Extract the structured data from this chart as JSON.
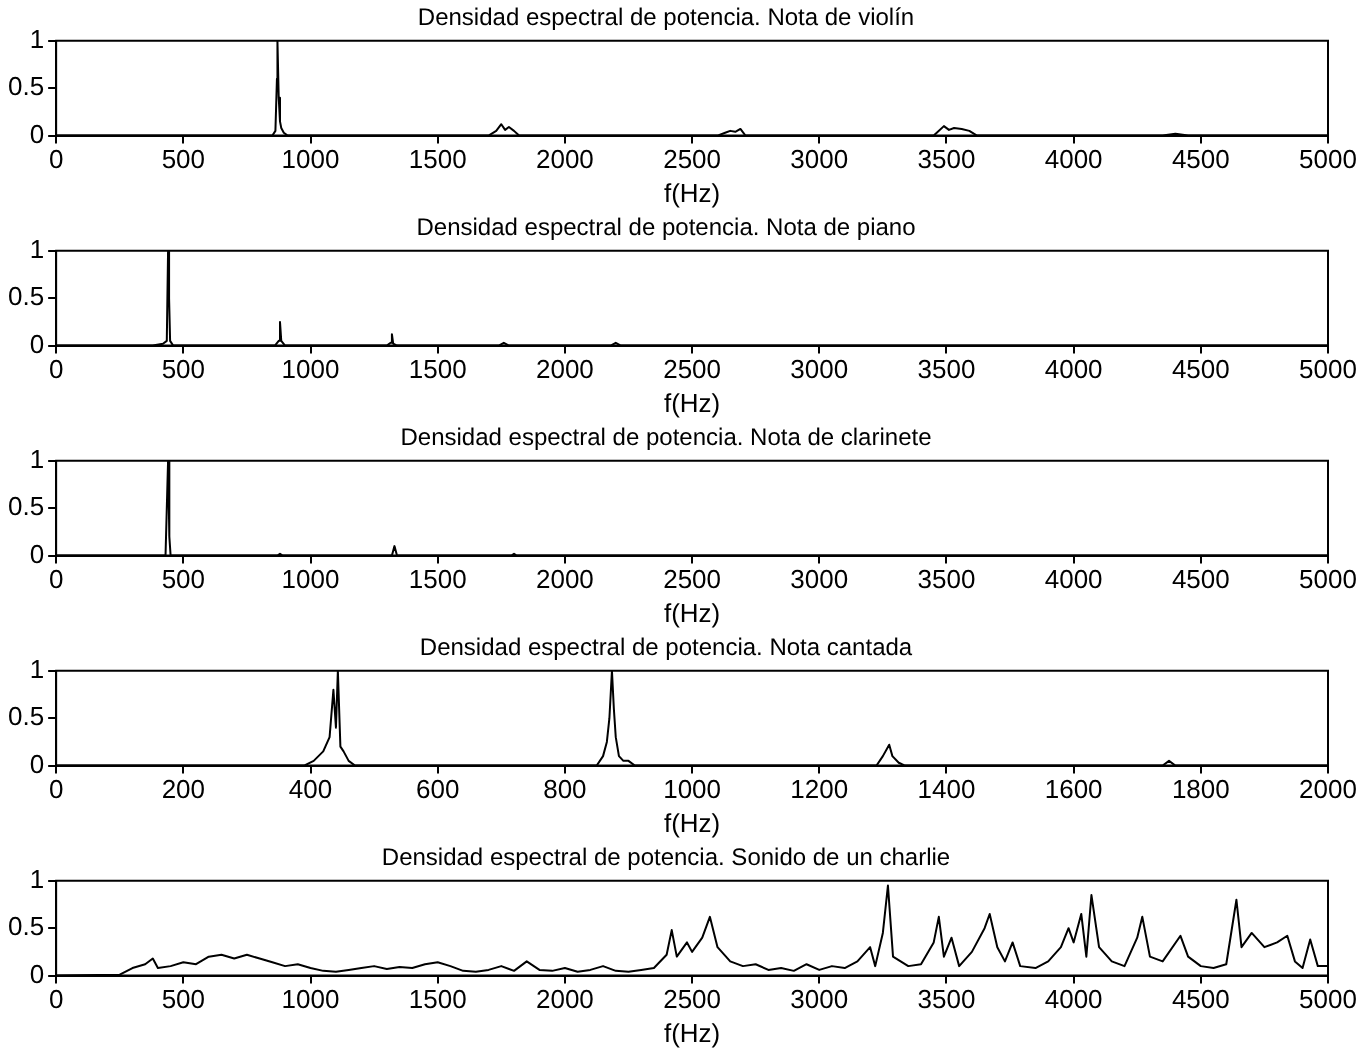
{
  "chart_data": [
    {
      "type": "line",
      "title": "Densidad espectral de potencia. Nota de violín",
      "xlabel": "f(Hz)",
      "color": "#000000",
      "marker": "none",
      "xlim": [
        0,
        5000
      ],
      "xticks": [
        0,
        500,
        1000,
        1500,
        2000,
        2500,
        3000,
        3500,
        4000,
        4500,
        5000
      ],
      "ylim": [
        0,
        1
      ],
      "yticks": [
        0,
        0.5,
        1
      ],
      "x": [
        0,
        850,
        862,
        868,
        870,
        875,
        880,
        885,
        895,
        910,
        1700,
        1730,
        1750,
        1765,
        1780,
        1800,
        1820,
        2600,
        2630,
        2650,
        2670,
        2690,
        2710,
        3450,
        3490,
        3510,
        3530,
        3560,
        3590,
        3620,
        4350,
        4400,
        4450,
        5000
      ],
      "values": [
        0,
        0,
        0.05,
        0.6,
        1,
        0.4,
        0.15,
        0.08,
        0.03,
        0,
        0,
        0.05,
        0.12,
        0.06,
        0.09,
        0.05,
        0,
        0,
        0.03,
        0.05,
        0.04,
        0.07,
        0,
        0,
        0.1,
        0.06,
        0.08,
        0.07,
        0.05,
        0,
        0,
        0.02,
        0,
        0
      ]
    },
    {
      "type": "line",
      "title": "Densidad espectral de potencia. Nota de piano",
      "xlabel": "f(Hz)",
      "color": "#000000",
      "marker": "none",
      "xlim": [
        0,
        5000
      ],
      "xticks": [
        0,
        500,
        1000,
        1500,
        2000,
        2500,
        3000,
        3500,
        4000,
        4500,
        5000
      ],
      "ylim": [
        0,
        1
      ],
      "yticks": [
        0,
        0.5,
        1
      ],
      "x": [
        0,
        380,
        420,
        435,
        440,
        444,
        448,
        460,
        860,
        875,
        880,
        885,
        900,
        1300,
        1315,
        1320,
        1325,
        1340,
        1740,
        1760,
        1780,
        2180,
        2200,
        2220,
        5000
      ],
      "values": [
        0,
        0,
        0.02,
        0.05,
        1,
        0.5,
        0.05,
        0,
        0,
        0.05,
        0.25,
        0.05,
        0,
        0,
        0.03,
        0.12,
        0.02,
        0,
        0,
        0.03,
        0,
        0,
        0.03,
        0,
        0
      ]
    },
    {
      "type": "line",
      "title": "Densidad espectral de potencia. Nota de clarinete",
      "xlabel": "f(Hz)",
      "color": "#000000",
      "marker": "none",
      "xlim": [
        0,
        5000
      ],
      "xticks": [
        0,
        500,
        1000,
        1500,
        2000,
        2500,
        3000,
        3500,
        4000,
        4500,
        5000
      ],
      "ylim": [
        0,
        1
      ],
      "yticks": [
        0,
        0.5,
        1
      ],
      "x": [
        0,
        430,
        440,
        445,
        450,
        870,
        880,
        890,
        1320,
        1330,
        1340,
        1790,
        1800,
        1810,
        5000
      ],
      "values": [
        0,
        0,
        1,
        0.2,
        0,
        0,
        0.02,
        0,
        0,
        0.1,
        0,
        0,
        0.02,
        0,
        0
      ]
    },
    {
      "type": "line",
      "title": "Densidad espectral de potencia. Nota cantada",
      "xlabel": "f(Hz)",
      "color": "#000000",
      "marker": "none",
      "xlim": [
        0,
        2000
      ],
      "xticks": [
        0,
        200,
        400,
        600,
        800,
        1000,
        1200,
        1400,
        1600,
        1800,
        2000
      ],
      "ylim": [
        0,
        1
      ],
      "yticks": [
        0,
        0.5,
        1
      ],
      "x": [
        0,
        390,
        405,
        420,
        430,
        436,
        440,
        443,
        447,
        452,
        460,
        470,
        850,
        860,
        866,
        870,
        874,
        877,
        880,
        885,
        892,
        900,
        910,
        1290,
        1300,
        1310,
        1315,
        1325,
        1335,
        1740,
        1750,
        1760,
        2000
      ],
      "values": [
        0,
        0,
        0.05,
        0.15,
        0.3,
        0.8,
        0.4,
        1,
        0.2,
        0.15,
        0.05,
        0,
        0,
        0.1,
        0.25,
        0.5,
        1,
        0.6,
        0.3,
        0.1,
        0.05,
        0.05,
        0,
        0,
        0.1,
        0.22,
        0.1,
        0.03,
        0,
        0,
        0.05,
        0,
        0
      ]
    },
    {
      "type": "line",
      "title": "Densidad espectral de potencia. Sonido de un charlie",
      "xlabel": "f(Hz)",
      "color": "#000000",
      "marker": "none",
      "xlim": [
        0,
        5000
      ],
      "xticks": [
        0,
        500,
        1000,
        1500,
        2000,
        2500,
        3000,
        3500,
        4000,
        4500,
        5000
      ],
      "ylim": [
        0,
        1
      ],
      "yticks": [
        0,
        0.5,
        1
      ],
      "x": [
        0,
        250,
        300,
        350,
        380,
        400,
        450,
        500,
        550,
        600,
        650,
        700,
        750,
        800,
        850,
        900,
        950,
        1000,
        1050,
        1100,
        1150,
        1200,
        1250,
        1300,
        1350,
        1400,
        1450,
        1500,
        1550,
        1600,
        1650,
        1700,
        1750,
        1800,
        1850,
        1900,
        1950,
        2000,
        2050,
        2100,
        2150,
        2200,
        2250,
        2300,
        2350,
        2400,
        2420,
        2440,
        2480,
        2500,
        2540,
        2570,
        2600,
        2650,
        2700,
        2750,
        2800,
        2850,
        2900,
        2950,
        3000,
        3050,
        3100,
        3150,
        3200,
        3220,
        3250,
        3270,
        3290,
        3320,
        3350,
        3400,
        3450,
        3470,
        3490,
        3520,
        3550,
        3600,
        3650,
        3670,
        3700,
        3730,
        3760,
        3790,
        3850,
        3900,
        3950,
        3980,
        4000,
        4030,
        4050,
        4070,
        4100,
        4150,
        4200,
        4250,
        4270,
        4300,
        4350,
        4420,
        4450,
        4500,
        4550,
        4600,
        4640,
        4660,
        4700,
        4750,
        4800,
        4840,
        4870,
        4900,
        4930,
        4960,
        5000
      ],
      "values": [
        0,
        0.01,
        0.08,
        0.12,
        0.18,
        0.08,
        0.1,
        0.14,
        0.12,
        0.2,
        0.22,
        0.18,
        0.22,
        0.18,
        0.14,
        0.1,
        0.12,
        0.08,
        0.05,
        0.04,
        0.06,
        0.08,
        0.1,
        0.07,
        0.09,
        0.08,
        0.12,
        0.14,
        0.1,
        0.05,
        0.04,
        0.06,
        0.1,
        0.05,
        0.15,
        0.06,
        0.05,
        0.08,
        0.04,
        0.06,
        0.1,
        0.05,
        0.04,
        0.06,
        0.08,
        0.22,
        0.48,
        0.2,
        0.35,
        0.25,
        0.4,
        0.62,
        0.3,
        0.15,
        0.1,
        0.12,
        0.06,
        0.08,
        0.05,
        0.12,
        0.06,
        0.1,
        0.08,
        0.15,
        0.3,
        0.1,
        0.45,
        0.95,
        0.2,
        0.15,
        0.1,
        0.12,
        0.35,
        0.62,
        0.2,
        0.4,
        0.1,
        0.25,
        0.5,
        0.65,
        0.3,
        0.15,
        0.35,
        0.1,
        0.08,
        0.15,
        0.3,
        0.5,
        0.35,
        0.65,
        0.2,
        0.85,
        0.3,
        0.15,
        0.1,
        0.4,
        0.62,
        0.2,
        0.15,
        0.42,
        0.2,
        0.1,
        0.08,
        0.12,
        0.8,
        0.3,
        0.45,
        0.3,
        0.35,
        0.42,
        0.15,
        0.08,
        0.38,
        0.1,
        0.1
      ]
    }
  ]
}
